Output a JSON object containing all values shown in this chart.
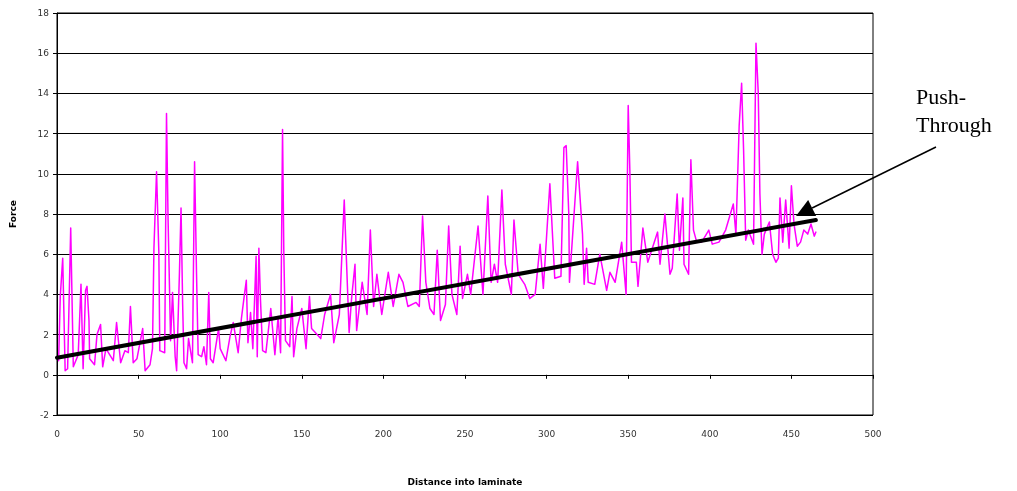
{
  "chart_data": {
    "type": "line",
    "xlabel": "Distance into laminate",
    "ylabel": "Force",
    "xlim": [
      0,
      500
    ],
    "xticks": [
      0,
      50,
      100,
      150,
      200,
      250,
      300,
      350,
      400,
      450,
      500
    ],
    "ylim": [
      -2,
      18
    ],
    "yticks": [
      -2,
      0,
      2,
      4,
      6,
      8,
      10,
      12,
      14,
      16,
      18
    ],
    "grid": "y",
    "marker": "none",
    "line_style": "solid",
    "annotations": [
      "Push-\nThrough"
    ],
    "series": [
      {
        "color": "#ff00ff",
        "x": [
          1,
          2,
          3.5,
          5,
          6.5,
          8.4,
          10,
          13,
          14.7,
          16,
          17.5,
          18.4,
          19.6,
          20,
          23,
          24.5,
          26.7,
          28,
          30,
          34.5,
          36.5,
          39,
          41.6,
          43.7,
          45,
          46.7,
          49,
          52.5,
          54,
          57,
          58.5,
          59.4,
          61,
          62.4,
          63,
          66,
          67.1,
          68,
          69.6,
          70.8,
          72.4,
          73.3,
          75,
          76,
          77,
          77.8,
          79.4,
          80.6,
          83,
          84.3,
          85.5,
          86.5,
          88.6,
          90,
          91.6,
          93,
          94,
          95.7,
          99,
          100,
          103.5,
          106,
          108,
          111,
          113,
          114.7,
          116,
          117,
          118.6,
          120,
          122,
          122.7,
          123.7,
          124.7,
          126,
          128,
          131,
          133.5,
          135.5,
          137,
          138.2,
          139,
          140,
          142.6,
          144,
          145,
          147,
          150,
          152.6,
          154.7,
          156,
          161.6,
          164,
          167.6,
          169.6,
          173,
          176,
          177,
          179,
          180.5,
          182.6,
          183.6,
          187,
          190,
          192,
          194,
          196,
          199,
          203,
          206,
          209.5,
          212,
          215,
          220,
          222,
          224,
          226,
          228.5,
          231,
          233,
          235,
          238,
          240,
          242,
          245,
          247,
          248.5,
          251.5,
          253.5,
          258,
          261,
          264,
          266,
          268,
          270,
          272.6,
          274.7,
          278.4,
          280,
          282.6,
          286.6,
          289.7,
          293,
          296,
          298,
          302,
          305,
          308.8,
          310.6,
          312,
          313.6,
          314,
          319,
          322,
          323,
          324.5,
          325.5,
          329.5,
          332.6,
          336.8,
          338.8,
          342,
          346,
          348.7,
          350,
          351,
          352,
          355,
          356,
          359,
          362,
          368,
          369.5,
          372.5,
          375.6,
          377,
          380,
          381.4,
          383.5,
          384.2,
          387,
          388.4,
          390,
          392,
          395,
          399.4,
          401.5,
          405.6,
          409.7,
          414.4,
          416,
          418,
          419.5,
          420.7,
          422,
          423.6,
          426.8,
          428.3,
          429.7,
          430.7,
          432,
          433.4,
          436.5,
          438.5,
          440.5,
          442,
          443,
          444.7,
          446.5,
          448.6,
          450,
          451.6,
          453.6,
          455.6,
          457.6,
          460,
          462,
          464,
          465
        ],
        "values": [
          0.7,
          3.9,
          5.8,
          0.2,
          0.3,
          7.3,
          0.4,
          1.0,
          4.5,
          0.3,
          4.2,
          4.4,
          2.7,
          0.8,
          0.5,
          2.0,
          2.5,
          0.4,
          1.3,
          0.7,
          2.6,
          0.6,
          1.2,
          1.1,
          3.4,
          0.6,
          0.8,
          2.3,
          0.2,
          0.5,
          1.3,
          6.3,
          10.1,
          6.1,
          1.2,
          1.1,
          13.0,
          8.0,
          1.7,
          4.1,
          0.9,
          0.2,
          5.0,
          8.3,
          3.5,
          0.6,
          0.3,
          1.8,
          0.6,
          10.6,
          5.0,
          1.0,
          0.9,
          1.4,
          0.5,
          4.1,
          0.8,
          0.6,
          2.3,
          1.3,
          0.7,
          1.9,
          2.6,
          1.1,
          2.8,
          3.9,
          4.7,
          1.6,
          3.1,
          1.3,
          5.9,
          0.9,
          6.3,
          3.7,
          1.2,
          1.1,
          3.3,
          1.0,
          2.9,
          1.1,
          12.2,
          6.0,
          1.7,
          1.4,
          3.9,
          0.9,
          2.3,
          3.3,
          1.3,
          3.9,
          2.3,
          1.8,
          3.0,
          4.0,
          1.6,
          3.0,
          8.7,
          6.5,
          2.1,
          3.8,
          5.5,
          2.2,
          4.6,
          3.0,
          7.2,
          3.4,
          5.0,
          3.0,
          5.1,
          3.4,
          5.0,
          4.6,
          3.4,
          3.6,
          3.4,
          7.9,
          4.6,
          3.3,
          3.0,
          6.2,
          2.7,
          3.5,
          7.4,
          4.0,
          3.0,
          6.4,
          3.8,
          5.0,
          4.0,
          7.4,
          4.0,
          8.9,
          4.6,
          5.5,
          4.6,
          9.2,
          5.5,
          4.0,
          7.7,
          5.0,
          4.5,
          3.8,
          4.0,
          6.5,
          4.3,
          9.5,
          4.8,
          4.9,
          11.3,
          11.4,
          8.0,
          4.6,
          10.6,
          7.0,
          4.5,
          6.3,
          4.6,
          4.5,
          6.0,
          4.2,
          5.1,
          4.6,
          6.6,
          4.0,
          13.4,
          10.2,
          5.6,
          5.6,
          4.4,
          7.3,
          5.6,
          7.1,
          5.5,
          8.0,
          5.0,
          5.3,
          9.0,
          6.2,
          8.8,
          5.5,
          5.0,
          10.7,
          7.2,
          6.6,
          6.6,
          7.2,
          6.5,
          6.6,
          7.2,
          8.5,
          7.0,
          12.4,
          14.5,
          11.2,
          6.7,
          7.2,
          6.5,
          16.5,
          14.0,
          9.0,
          6.0,
          7.0,
          7.6,
          6.0,
          5.6,
          5.8,
          8.8,
          6.6,
          8.7,
          6.3,
          9.4,
          7.5,
          6.4,
          6.6,
          7.2,
          7.0,
          7.5,
          6.9,
          7.1
        ]
      },
      {
        "type": "line",
        "color": "#000000",
        "x": [
          0,
          465
        ],
        "values": [
          0.85,
          7.7
        ]
      }
    ]
  }
}
